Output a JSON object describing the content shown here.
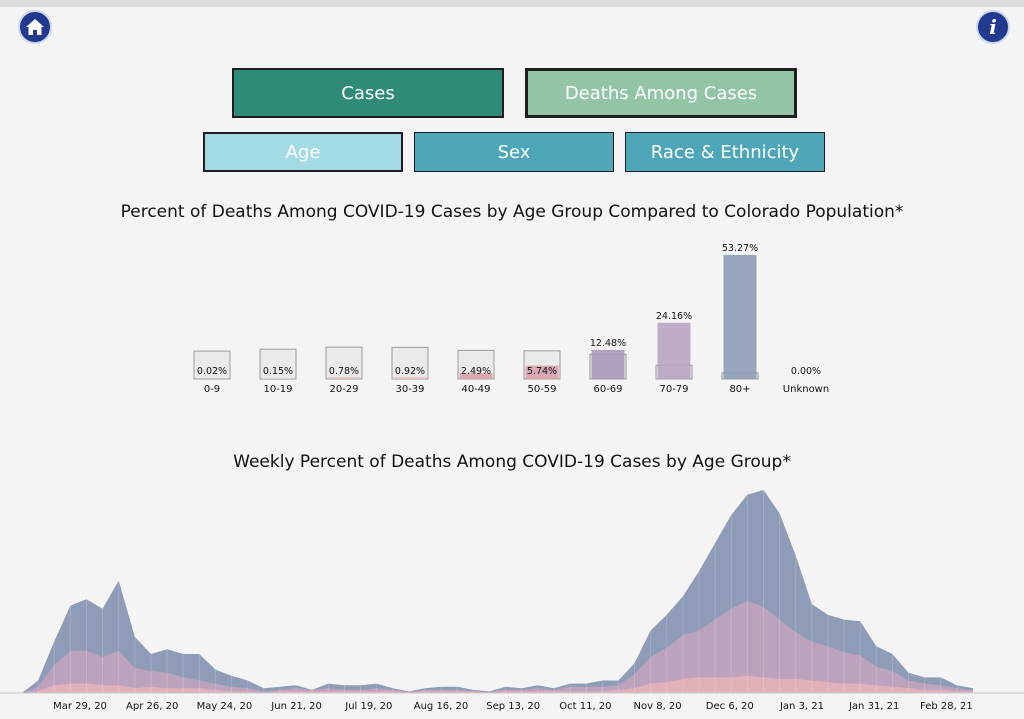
{
  "header": {
    "home_icon": "home-icon",
    "info_icon": "info-icon",
    "info_glyph": "i"
  },
  "buttons": {
    "cases": "Cases",
    "deaths": "Deaths Among Cases",
    "age": "Age",
    "sex": "Sex",
    "race": "Race & Ethnicity"
  },
  "colors": {
    "cases_button": "#2f8a78",
    "deaths_button": "#93c4a6",
    "age_button": "#a3dbe4",
    "tab_button": "#4ea6b9",
    "icon_blue": "#213a8f"
  },
  "chart_data": [
    {
      "type": "bar",
      "title": "Percent of Deaths Among COVID-19 Cases by Age Group Compared to Colorado Population*",
      "categories": [
        "0-9",
        "10-19",
        "20-29",
        "30-39",
        "40-49",
        "50-59",
        "60-69",
        "70-79",
        "80+",
        "Unknown"
      ],
      "series": [
        {
          "values": [
            0.02,
            0.15,
            0.78,
            0.92,
            2.49,
            5.74,
            12.48,
            24.16,
            53.27,
            0.0
          ],
          "labels": [
            "0.02%",
            "0.15%",
            "0.78%",
            "0.92%",
            "2.49%",
            "5.74%",
            "12.48%",
            "24.16%",
            "53.27%",
            "0.00%"
          ],
          "colors": [
            "#e7c3c7",
            "#e7c3c7",
            "#e7c3c7",
            "#e7c3c7",
            "#d9a1ae",
            "#d9a1ae",
            "#a89aba",
            "#b9a4c3",
            "#8e9cb7",
            "#8e9cb7"
          ]
        },
        {
          "values": [
            12.0,
            12.8,
            13.7,
            13.6,
            12.3,
            12.1,
            10.6,
            5.9,
            2.6,
            0.0
          ]
        }
      ],
      "ylim": [
        0,
        55
      ],
      "legend": "none"
    },
    {
      "type": "area",
      "title": "Weekly Percent of Deaths Among COVID-19 Cases by Age Group*",
      "x_tick_labels": [
        "Mar 29, 20",
        "Apr 26, 20",
        "May 24, 20",
        "Jun 21, 20",
        "Jul 19, 20",
        "Aug 16, 20",
        "Sep 13, 20",
        "Oct 11, 20",
        "Nov 8, 20",
        "Dec 6, 20",
        "Jan 3, 21",
        "Jan 31, 21",
        "Feb 28, 21"
      ],
      "series": [
        {
          "values": [
            0.0,
            0.8,
            3.3,
            5.6,
            6.0,
            5.4,
            7.2,
            3.6,
            2.5,
            2.8,
            2.5,
            2.5,
            1.5,
            1.1,
            0.8,
            0.3,
            0.4,
            0.5,
            0.2,
            0.6,
            0.5,
            0.5,
            0.6,
            0.3,
            0.1,
            0.3,
            0.4,
            0.4,
            0.2,
            0.1,
            0.4,
            0.3,
            0.5,
            0.3,
            0.6,
            0.6,
            0.8,
            0.8,
            1.9,
            4.0,
            5.0,
            6.2,
            7.8,
            9.6,
            11.4,
            12.7,
            13.0,
            11.5,
            8.8,
            5.7,
            5.0,
            4.7,
            4.6,
            3.0,
            2.5,
            1.3,
            1.0,
            1.0,
            0.5,
            0.3
          ],
          "color": "#8e9cb7"
        },
        {
          "values": [
            0.0,
            0.4,
            1.8,
            2.7,
            2.7,
            2.3,
            2.7,
            1.6,
            1.4,
            1.3,
            1.0,
            0.8,
            0.6,
            0.4,
            0.3,
            0.1,
            0.2,
            0.3,
            0.2,
            0.3,
            0.2,
            0.2,
            0.3,
            0.2,
            0.1,
            0.2,
            0.2,
            0.2,
            0.1,
            0.1,
            0.2,
            0.2,
            0.3,
            0.2,
            0.4,
            0.4,
            0.4,
            0.5,
            1.2,
            2.3,
            2.9,
            3.7,
            4.0,
            4.7,
            5.4,
            5.9,
            5.5,
            4.7,
            3.9,
            3.3,
            3.0,
            2.6,
            2.4,
            1.7,
            1.4,
            0.8,
            0.6,
            0.5,
            0.3,
            0.2
          ],
          "color": "#c5a3bf"
        },
        {
          "values": [
            0.0,
            0.1,
            0.5,
            0.6,
            0.6,
            0.5,
            0.5,
            0.3,
            0.4,
            0.3,
            0.3,
            0.3,
            0.2,
            0.1,
            0.1,
            0.0,
            0.1,
            0.1,
            0.1,
            0.1,
            0.1,
            0.1,
            0.1,
            0.1,
            0.0,
            0.1,
            0.1,
            0.1,
            0.1,
            0.0,
            0.1,
            0.1,
            0.1,
            0.1,
            0.1,
            0.1,
            0.1,
            0.2,
            0.3,
            0.6,
            0.7,
            0.9,
            1.0,
            1.0,
            1.0,
            1.1,
            1.0,
            0.9,
            0.9,
            0.8,
            0.7,
            0.6,
            0.6,
            0.5,
            0.4,
            0.3,
            0.2,
            0.2,
            0.1,
            0.1
          ],
          "color": "#e9b3b8"
        }
      ],
      "grid": false,
      "legend": "none"
    }
  ]
}
